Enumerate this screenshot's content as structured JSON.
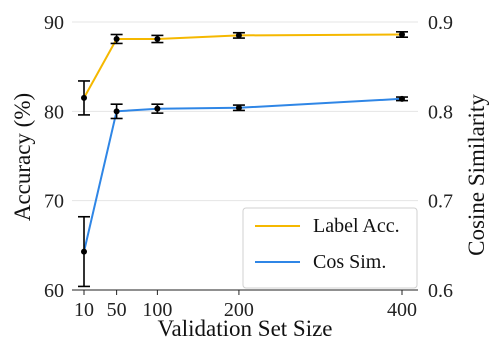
{
  "chart_data": {
    "type": "line",
    "title": "",
    "xlabel": "Validation Set Size",
    "ylabel_left": "Accuracy (%)",
    "ylabel_right": "Cosine Similarity",
    "x": [
      10,
      50,
      100,
      200,
      400
    ],
    "x_tick_labels": [
      "10",
      "50",
      "100",
      "200",
      "400"
    ],
    "ylim_left": [
      60,
      90
    ],
    "yticks_left": [
      60,
      70,
      80,
      90
    ],
    "ylim_right": [
      0.6,
      0.9
    ],
    "yticks_right": [
      "0.6",
      "0.7",
      "0.8",
      "0.9"
    ],
    "grid": "horizontal",
    "legend_position": "bottom-right",
    "series": [
      {
        "name": "Label Acc.",
        "axis": "left",
        "color": "#F5B800",
        "values": [
          81.5,
          88.1,
          88.1,
          88.5,
          88.6
        ],
        "errors": [
          1.9,
          0.5,
          0.4,
          0.3,
          0.3
        ]
      },
      {
        "name": "Cos Sim.",
        "axis": "right",
        "color": "#2F86E6",
        "values": [
          0.643,
          0.8,
          0.803,
          0.804,
          0.814
        ],
        "errors": [
          0.039,
          0.008,
          0.005,
          0.003,
          0.002
        ]
      }
    ]
  }
}
